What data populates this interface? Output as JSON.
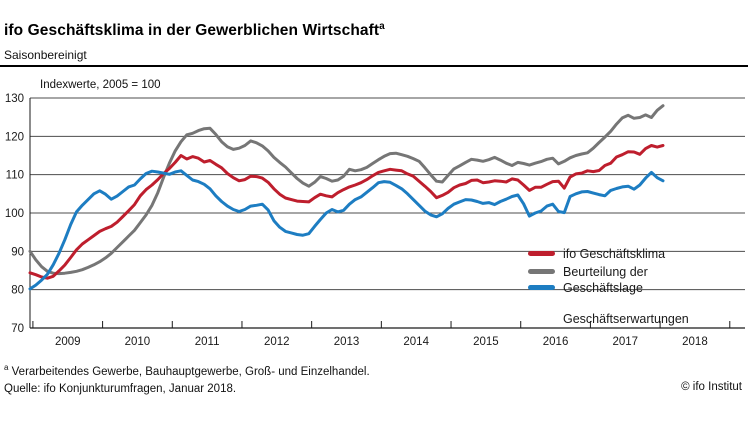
{
  "header": {
    "title_main": "ifo Geschäftsklima in der Gewerblichen Wirtschaft",
    "title_sup": "a",
    "subtitle": "Saisonbereinigt"
  },
  "chart_data": {
    "type": "line",
    "title": "ifo Geschäftsklima in der Gewerblichen Wirtschaft (saisonbereinigt)",
    "unit_label": "Indexwerte, 2005 = 100",
    "x_start_month": "2008-12",
    "x_end_month": "2018-01",
    "x_interval": "monthly",
    "x_tick_years": [
      "2009",
      "2010",
      "2011",
      "2012",
      "2013",
      "2014",
      "2015",
      "2016",
      "2017",
      "2018"
    ],
    "ylim": [
      70,
      130
    ],
    "y_ticks": [
      70,
      80,
      90,
      100,
      110,
      120,
      130
    ],
    "grid": true,
    "legend_position": "inside-right",
    "series": [
      {
        "name": "ifo Geschäftsklima",
        "color": "#be1e2d",
        "values": [
          84.4,
          83.9,
          83.3,
          83.0,
          83.5,
          84.9,
          86.4,
          88.4,
          90.4,
          91.9,
          93.0,
          94.1,
          95.2,
          95.9,
          96.5,
          97.6,
          99.1,
          100.6,
          102.2,
          104.5,
          106.1,
          107.3,
          108.7,
          110.3,
          111.6,
          113.2,
          115.0,
          114.1,
          114.7,
          114.3,
          113.3,
          113.7,
          112.7,
          111.8,
          110.3,
          109.2,
          108.4,
          108.7,
          109.6,
          109.5,
          109.1,
          108.0,
          106.3,
          104.9,
          103.9,
          103.5,
          103.1,
          103.0,
          102.9,
          104.0,
          104.9,
          104.5,
          104.2,
          105.3,
          106.1,
          106.8,
          107.3,
          107.9,
          108.7,
          109.7,
          110.6,
          111.0,
          111.4,
          111.2,
          111.0,
          110.2,
          109.6,
          108.3,
          107.0,
          105.6,
          104.0,
          104.6,
          105.4,
          106.6,
          107.3,
          107.7,
          108.5,
          108.6,
          107.9,
          108.1,
          108.4,
          108.3,
          108.1,
          108.9,
          108.6,
          107.3,
          105.9,
          106.7,
          106.7,
          107.5,
          108.2,
          108.3,
          106.5,
          109.4,
          110.2,
          110.4,
          111.0,
          110.8,
          111.1,
          112.4,
          113.0,
          114.6,
          115.2,
          116.0,
          115.9,
          115.3,
          116.8,
          117.6,
          117.2,
          117.6
        ]
      },
      {
        "name": "Beurteilung der Geschäftslage",
        "color": "#767676",
        "values": [
          90.0,
          87.8,
          86.0,
          84.8,
          84.3,
          84.2,
          84.3,
          84.5,
          84.8,
          85.2,
          85.8,
          86.5,
          87.3,
          88.3,
          89.5,
          91.0,
          92.5,
          94.0,
          95.5,
          97.5,
          99.5,
          102.0,
          105.3,
          109.3,
          113.0,
          116.2,
          118.6,
          120.4,
          120.8,
          121.5,
          122.0,
          122.1,
          120.5,
          118.6,
          117.3,
          116.6,
          116.9,
          117.6,
          118.8,
          118.3,
          117.5,
          116.2,
          114.5,
          113.2,
          112.0,
          110.5,
          109.0,
          107.8,
          107.0,
          108.0,
          109.5,
          109.0,
          108.3,
          108.6,
          109.6,
          111.4,
          111.0,
          111.3,
          111.9,
          112.9,
          113.9,
          114.8,
          115.5,
          115.6,
          115.2,
          114.8,
          114.2,
          113.5,
          111.8,
          110.0,
          108.3,
          108.1,
          109.8,
          111.5,
          112.3,
          113.2,
          114.0,
          113.8,
          113.5,
          113.9,
          114.5,
          113.8,
          113.0,
          112.4,
          113.2,
          112.9,
          112.5,
          113.0,
          113.4,
          114.0,
          114.3,
          112.8,
          113.5,
          114.4,
          115.0,
          115.4,
          115.7,
          116.9,
          118.4,
          119.8,
          121.3,
          123.2,
          124.8,
          125.5,
          124.7,
          124.9,
          125.6,
          124.9,
          126.8,
          128.0
        ]
      },
      {
        "name": "Geschäftserwartungen",
        "color": "#1d7dc2",
        "values": [
          80.2,
          81.2,
          82.5,
          84.0,
          86.5,
          89.5,
          93.0,
          97.0,
          100.3,
          102.0,
          103.5,
          105.0,
          105.8,
          104.9,
          103.6,
          104.4,
          105.6,
          106.8,
          107.3,
          108.9,
          110.3,
          110.9,
          110.7,
          110.4,
          110.1,
          110.7,
          111.0,
          109.8,
          108.6,
          108.2,
          107.5,
          106.3,
          104.5,
          103.0,
          101.8,
          100.9,
          100.4,
          100.9,
          101.8,
          102.0,
          102.3,
          100.8,
          98.0,
          96.3,
          95.2,
          94.8,
          94.4,
          94.2,
          94.6,
          96.5,
          98.3,
          100.0,
          100.9,
          100.3,
          100.7,
          102.3,
          103.5,
          104.2,
          105.4,
          106.6,
          107.9,
          108.2,
          108.0,
          107.2,
          106.3,
          105.0,
          103.5,
          102.0,
          100.5,
          99.5,
          99.0,
          99.8,
          101.2,
          102.3,
          102.9,
          103.5,
          103.4,
          103.0,
          102.5,
          102.7,
          102.2,
          103.0,
          103.6,
          104.3,
          104.7,
          102.4,
          99.2,
          100.0,
          100.5,
          101.8,
          102.3,
          100.4,
          100.1,
          104.3,
          105.0,
          105.5,
          105.6,
          105.2,
          104.8,
          104.5,
          105.9,
          106.4,
          106.8,
          107.0,
          106.2,
          107.3,
          109.1,
          110.6,
          109.2,
          108.4
        ]
      }
    ]
  },
  "legend": {
    "item1_label": "ifo Geschäftsklima",
    "item2_label_line1": "Beurteilung der",
    "item2_label_line2": "Geschäftslage",
    "item3_label": "Geschäftserwartungen"
  },
  "footer": {
    "footnote_sup": "a",
    "footnote_text": " Verarbeitendes Gewerbe, Bauhauptgewerbe, Groß- und Einzelhandel.",
    "source": "Quelle: ifo Konjunkturumfragen, Januar 2018.",
    "copyright": "© ifo Institut"
  },
  "colors": {
    "klima": "#be1e2d",
    "lage": "#767676",
    "erwartungen": "#1d7dc2",
    "text": "#1a1a1a",
    "grid": "#4d4d4d"
  }
}
